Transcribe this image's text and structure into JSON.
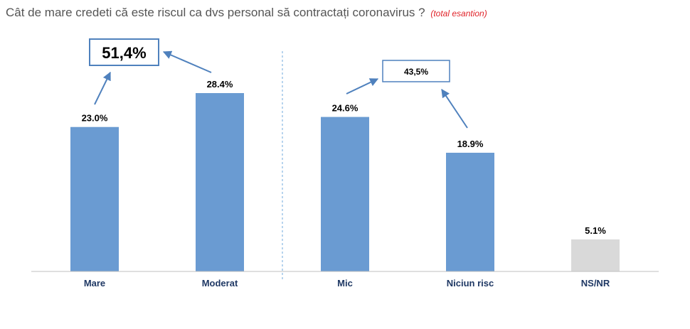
{
  "title": "Cât de mare credeti că este riscul ca dvs personal să contractați coronavirus ?",
  "subtitle": "(total esantion)",
  "colors": {
    "bar": "#6a9bd2",
    "bar_other": "#d9d9d9",
    "accent": "#4f81bd",
    "divider": "#6fa8dc"
  },
  "chart_data": {
    "type": "bar",
    "title": "Cât de mare credeti că este riscul ca dvs personal să contractați coronavirus ?",
    "subtitle": "(total esantion)",
    "categories": [
      "Mare",
      "Moderat",
      "Mic",
      "Niciun risc",
      "NS/NR"
    ],
    "values": [
      23.0,
      28.4,
      24.6,
      18.9,
      5.1
    ],
    "value_labels": [
      "23.0%",
      "28.4%",
      "24.6%",
      "18.9%",
      "5.1%"
    ],
    "ylim": [
      0,
      30
    ],
    "grid": false,
    "annotations": [
      {
        "text": "51,4%",
        "groups": [
          "Mare",
          "Moderat"
        ]
      },
      {
        "text": "43,5%",
        "groups": [
          "Mic",
          "Niciun risc"
        ]
      }
    ]
  }
}
